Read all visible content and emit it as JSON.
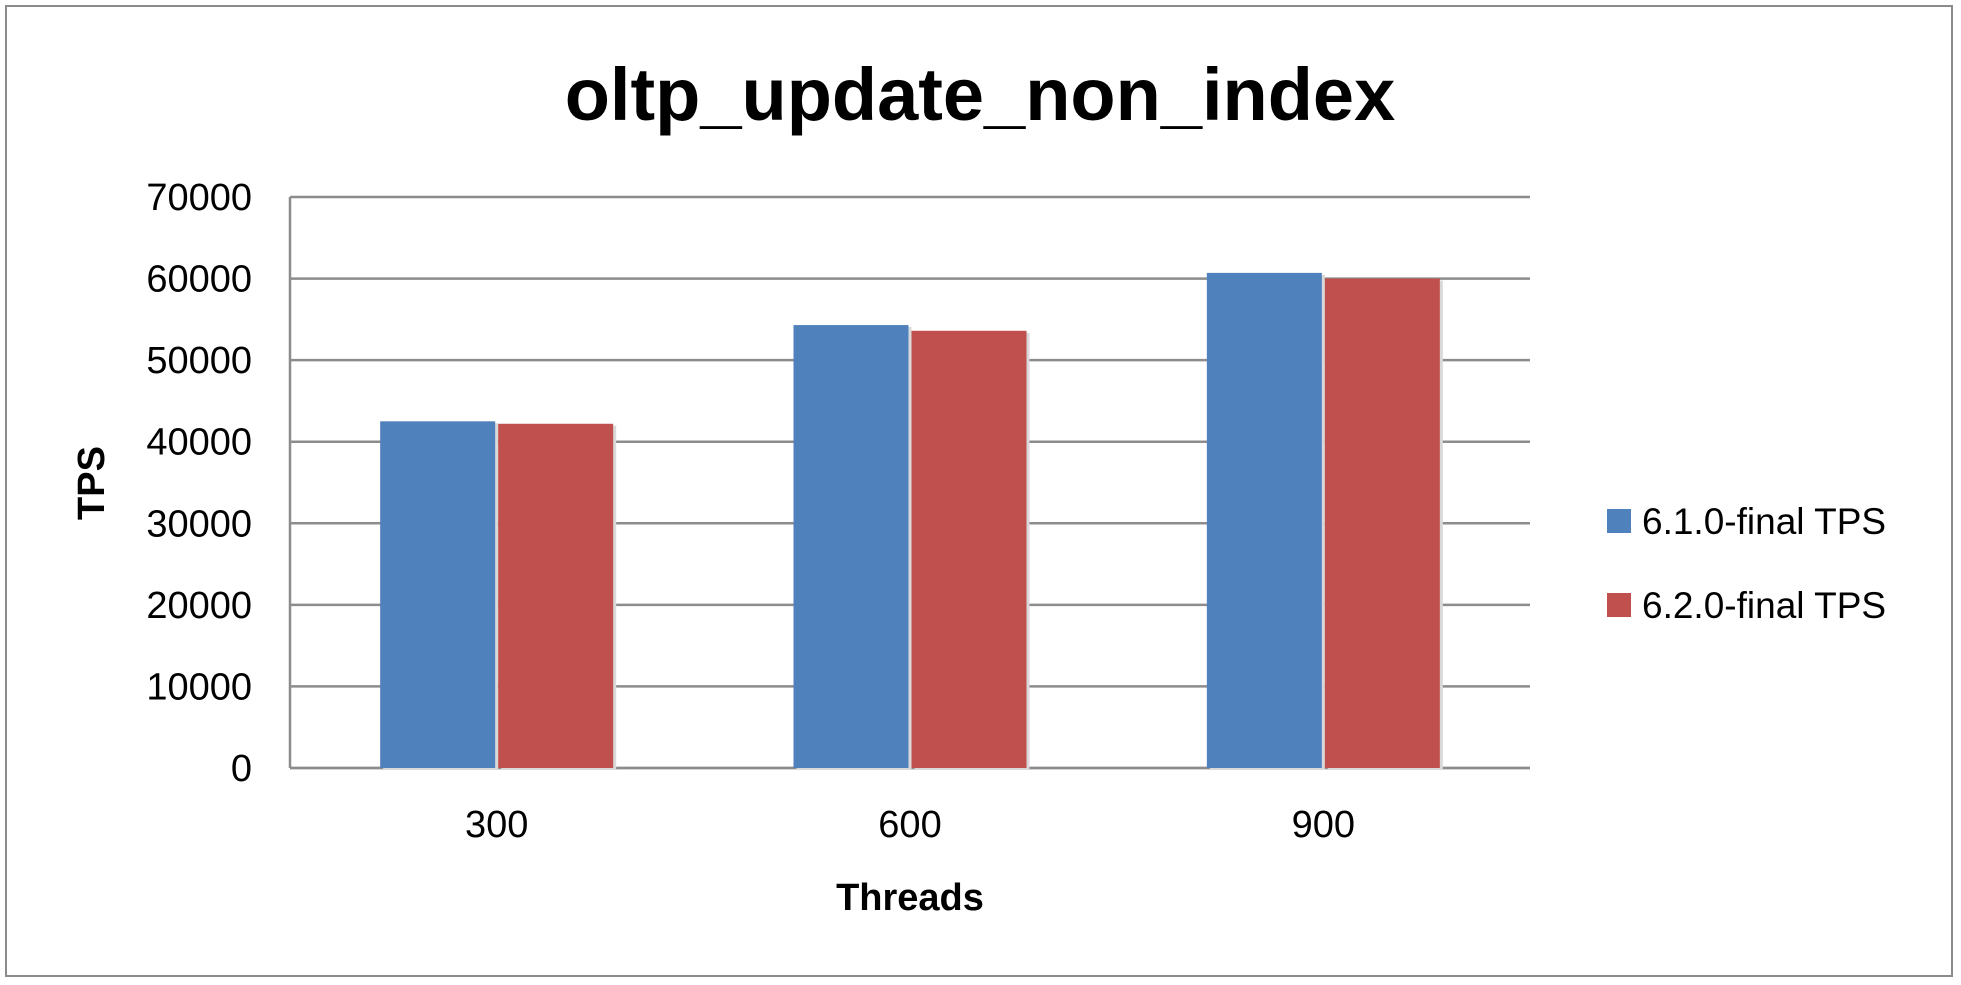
{
  "chart_data": {
    "type": "bar",
    "title": "oltp_update_non_index",
    "xlabel": "Threads",
    "ylabel": "TPS",
    "categories": [
      "300",
      "600",
      "900"
    ],
    "series": [
      {
        "name": "6.1.0-final TPS",
        "color": "#4f81bd",
        "values": [
          42500,
          54300,
          60700
        ]
      },
      {
        "name": "6.2.0-final TPS",
        "color": "#c0504d",
        "values": [
          42200,
          53600,
          60000
        ]
      }
    ],
    "ylim": [
      0,
      70000
    ],
    "yticks": [
      "0",
      "10000",
      "20000",
      "30000",
      "40000",
      "50000",
      "60000",
      "70000"
    ],
    "grid": true,
    "legend_position": "right"
  }
}
